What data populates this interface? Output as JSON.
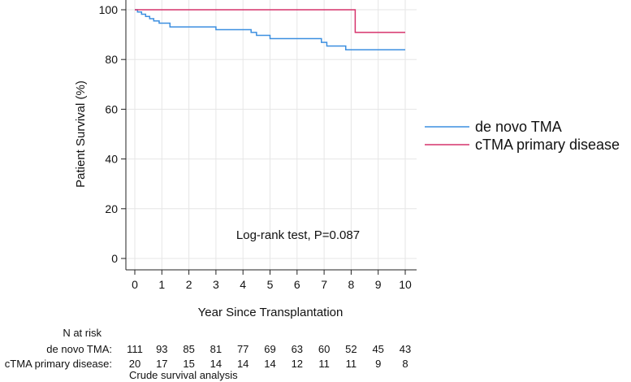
{
  "chart_data": {
    "type": "line",
    "xlabel": "Year Since Transplantation",
    "ylabel": "Patient Survival (%)",
    "xlim": [
      0,
      10
    ],
    "ylim": [
      0,
      100
    ],
    "xticks": [
      0,
      1,
      2,
      3,
      4,
      5,
      6,
      7,
      8,
      9,
      10
    ],
    "yticks": [
      0,
      20,
      40,
      60,
      80,
      100
    ],
    "grid": true,
    "legend_position": "right",
    "annotation": "Log-rank test, P=0.087",
    "series": [
      {
        "name": "de novo TMA",
        "color": "#3c8fe0",
        "step_x": [
          0,
          0.1,
          0.25,
          0.4,
          0.55,
          0.7,
          0.9,
          1.3,
          3.0,
          4.3,
          4.5,
          5.0,
          6.9,
          7.1,
          7.8,
          10
        ],
        "step_y": [
          100,
          99.1,
          98.2,
          97.3,
          96.4,
          95.5,
          94.6,
          93.1,
          92.0,
          90.9,
          89.7,
          88.4,
          86.9,
          85.4,
          83.9,
          83.9
        ]
      },
      {
        "name": "cTMA primary disease",
        "color": "#d6336c",
        "step_x": [
          0,
          8.15,
          10
        ],
        "step_y": [
          100,
          90.9,
          90.9
        ]
      }
    ],
    "risk_table": {
      "header": "N at risk",
      "times": [
        0,
        1,
        2,
        3,
        4,
        5,
        6,
        7,
        8,
        9,
        10
      ],
      "rows": [
        {
          "label": "de novo TMA:",
          "values": [
            111,
            93,
            85,
            81,
            77,
            69,
            63,
            60,
            52,
            45,
            43
          ]
        },
        {
          "label": "cTMA primary disease:",
          "values": [
            20,
            17,
            15,
            14,
            14,
            14,
            12,
            11,
            11,
            9,
            8
          ]
        }
      ],
      "footnote": "Crude survival analysis"
    }
  }
}
